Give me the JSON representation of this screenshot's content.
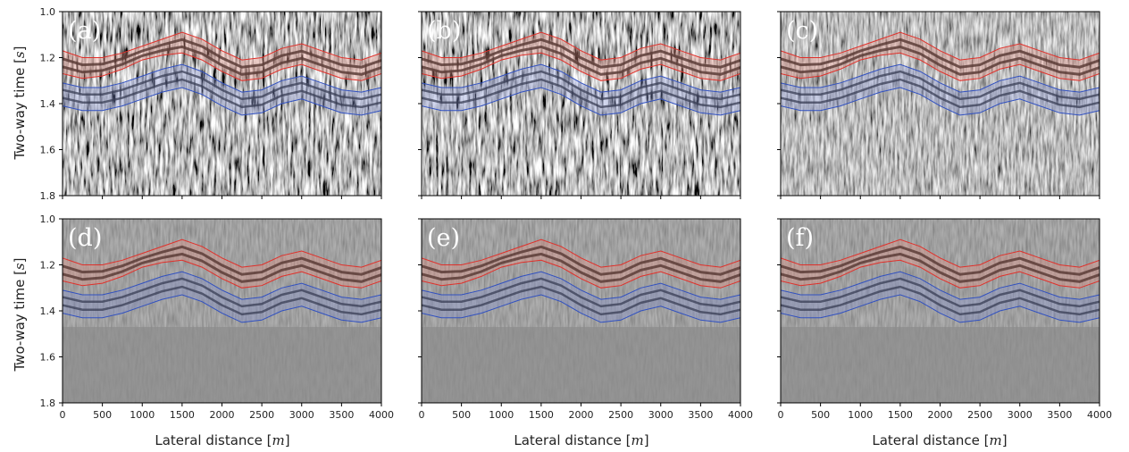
{
  "figure": {
    "xlabel": "Lateral distance [",
    "xlabel_unit": "m",
    "xlabel_end": "]",
    "ylabel": "Two-way time [",
    "ylabel_unit": "s",
    "ylabel_end": "]"
  },
  "chart_data": [
    {
      "panel": "(a)",
      "type": "heatmap",
      "noise": "high",
      "xlim": [
        0,
        4000
      ],
      "ylim": [
        1.8,
        1.0
      ],
      "xticks": [],
      "yticks": [
        "1.0",
        "1.2",
        "1.4",
        "1.6",
        "1.8"
      ]
    },
    {
      "panel": "(b)",
      "type": "heatmap",
      "noise": "high",
      "xlim": [
        0,
        4000
      ],
      "ylim": [
        1.8,
        1.0
      ],
      "xticks": [],
      "yticks": []
    },
    {
      "panel": "(c)",
      "type": "heatmap",
      "noise": "medium",
      "xlim": [
        0,
        4000
      ],
      "ylim": [
        1.8,
        1.0
      ],
      "xticks": [],
      "yticks": []
    },
    {
      "panel": "(d)",
      "type": "heatmap",
      "noise": "low",
      "xlim": [
        0,
        4000
      ],
      "ylim": [
        1.8,
        1.0
      ],
      "xticks": [
        "0",
        "500",
        "1000",
        "1500",
        "2000",
        "2500",
        "3000",
        "3500",
        "4000"
      ],
      "yticks": [
        "1.0",
        "1.2",
        "1.4",
        "1.6",
        "1.8"
      ]
    },
    {
      "panel": "(e)",
      "type": "heatmap",
      "noise": "low",
      "xlim": [
        0,
        4000
      ],
      "ylim": [
        1.8,
        1.0
      ],
      "xticks": [
        "0",
        "500",
        "1000",
        "1500",
        "2000",
        "2500",
        "3000",
        "3500",
        "4000"
      ],
      "yticks": []
    },
    {
      "panel": "(f)",
      "type": "heatmap",
      "noise": "low",
      "xlim": [
        0,
        4000
      ],
      "ylim": [
        1.8,
        1.0
      ],
      "xticks": [
        "0",
        "500",
        "1000",
        "1500",
        "2000",
        "2500",
        "3000",
        "3500",
        "4000"
      ],
      "yticks": []
    }
  ],
  "horizons": {
    "x": [
      0,
      250,
      500,
      750,
      1000,
      1250,
      1500,
      1750,
      2000,
      2250,
      2500,
      2750,
      3000,
      3250,
      3500,
      3750,
      4000
    ],
    "red_top": [
      1.17,
      1.2,
      1.2,
      1.18,
      1.15,
      1.12,
      1.09,
      1.12,
      1.17,
      1.21,
      1.2,
      1.16,
      1.14,
      1.17,
      1.2,
      1.21,
      1.18
    ],
    "red_bottom": [
      1.27,
      1.29,
      1.28,
      1.25,
      1.21,
      1.19,
      1.18,
      1.21,
      1.26,
      1.3,
      1.29,
      1.25,
      1.23,
      1.26,
      1.29,
      1.3,
      1.27
    ],
    "blue_top": [
      1.31,
      1.33,
      1.33,
      1.31,
      1.28,
      1.25,
      1.23,
      1.26,
      1.31,
      1.35,
      1.34,
      1.3,
      1.28,
      1.31,
      1.34,
      1.35,
      1.33
    ],
    "blue_bottom": [
      1.41,
      1.43,
      1.43,
      1.41,
      1.38,
      1.35,
      1.33,
      1.36,
      1.41,
      1.45,
      1.44,
      1.4,
      1.38,
      1.41,
      1.44,
      1.45,
      1.43
    ],
    "colors": {
      "red": "#e0302a",
      "red_fill": "#e89080",
      "blue": "#3050c0",
      "blue_fill": "#8090d0"
    }
  },
  "colors": {
    "background": "#808080",
    "panel_label": "#ffffff",
    "text": "#222222"
  }
}
